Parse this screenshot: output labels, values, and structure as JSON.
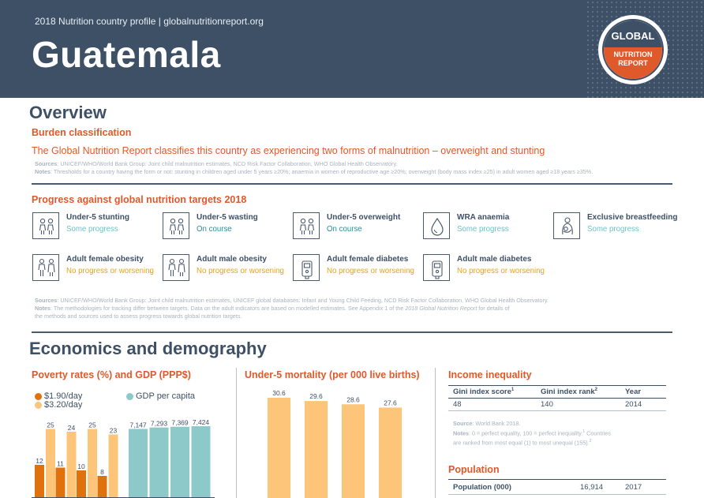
{
  "header": {
    "subtitle": "2018 Nutrition country profile  |  globalnutritionreport.org",
    "country": "Guatemala",
    "logo": {
      "line1": "GLOBAL",
      "line2": "NUTRITION",
      "line3": "REPORT"
    }
  },
  "overview": {
    "title": "Overview",
    "burden_heading": "Burden classification",
    "burden_text": "The Global Nutrition Report classifies this country as experiencing two forms of malnutrition – overweight and stunting",
    "sources_label": "Sources",
    "sources_text": ": UNICEF/WHO/World Bank Group: Joint child malnutrition estimates, NCD Risk Factor Collaboration, WHO Global Health Observatory.",
    "notes_label": "Notes",
    "notes_text": ": Thresholds for a country having the form or not: stunting in children aged under 5 years ≥20%; anaemia in women of reproductive age ≥20%; overweight (body mass index ≥25) in adult women aged ≥18 years ≥35%."
  },
  "progress": {
    "heading": "Progress against global nutrition targets 2018",
    "colors": {
      "some": "#6fc3c4",
      "on_course": "#2a8f98",
      "no_progress": "#e8a317"
    },
    "targets": [
      {
        "name": "Under-5 stunting",
        "status": "Some progress",
        "icon": "children-icon",
        "tone": "some"
      },
      {
        "name": "Under-5 wasting",
        "status": "On course",
        "icon": "children-icon",
        "tone": "on_course"
      },
      {
        "name": "Under-5 overweight",
        "status": "On course",
        "icon": "children-icon",
        "tone": "on_course"
      },
      {
        "name": "WRA anaemia",
        "status": "Some progress",
        "icon": "blood-drop-icon",
        "tone": "some"
      },
      {
        "name": "Exclusive breastfeeding",
        "status": "Some progress",
        "icon": "breastfeeding-icon",
        "tone": "some"
      },
      {
        "name": "Adult female obesity",
        "status": "No progress or worsening",
        "icon": "adults-icon",
        "tone": "no_progress"
      },
      {
        "name": "Adult male obesity",
        "status": "No progress or worsening",
        "icon": "adults-icon",
        "tone": "no_progress"
      },
      {
        "name": "Adult female diabetes",
        "status": "No progress or worsening",
        "icon": "glucose-meter-icon",
        "tone": "no_progress"
      },
      {
        "name": "Adult male diabetes",
        "status": "No progress or worsening",
        "icon": "glucose-meter-icon",
        "tone": "no_progress"
      }
    ],
    "sources_label": "Sources",
    "sources_text": ": UNICEF/WHO/World Bank Group: Joint child malnutrition estimates, UNICEF global databases: Infant and Young Child Feeding, NCD Risk Factor Collaboration, WHO Global Health Observatory.",
    "notes_label": "Notes",
    "notes_text": ": The methodologies for tracking differ between targets. Data on the adult indicators are based on modelled estimates. See Appendix 1 of the ",
    "notes_italic": "2018 Global Nutrition Report",
    "notes_text2": " for details of",
    "notes_line3": "the methods and sources used to assess progress towards global nutrition targets."
  },
  "economics": {
    "title": "Economics and demography",
    "poverty_heading": "Poverty rates (%) and GDP (PPP$)",
    "mortality_heading": "Under-5 mortality (per 000 live births)",
    "income_heading": "Income inequality",
    "income_table": {
      "headers": [
        "Gini index score",
        "Gini index rank",
        "Year"
      ],
      "sup1": "1",
      "sup2": "2",
      "row": [
        "48",
        "140",
        "2014"
      ]
    },
    "income_source_label": "Source",
    "income_source_text": ": World Bank 2018.",
    "income_notes_label": "Notes",
    "income_notes_text": ": 0 = perfect equality, 100 = perfect inequality.",
    "income_notes_sup1": "1",
    "income_notes_text2": " Countries",
    "income_notes_line2": "are ranked from most equal (1) to most unequal (155).",
    "income_notes_sup2": "2",
    "population_heading": "Population",
    "population_row": {
      "label": "Population (000)",
      "value": "16,914",
      "year": "2017"
    }
  },
  "chart_data": [
    {
      "type": "bar",
      "legend": [
        "$1.90/day",
        "$3.20/day"
      ],
      "colors": {
        "$1.90/day": "#e0720e",
        "$3.20/day": "#fdc57a"
      },
      "series": [
        {
          "name": "$1.90/day",
          "values": [
            12,
            11,
            10,
            8
          ],
          "labels": [
            "12",
            "11",
            "10",
            "8"
          ]
        },
        {
          "name": "$3.20/day",
          "values": [
            25,
            24,
            25,
            23
          ],
          "labels": [
            "25",
            "24",
            "25",
            "23"
          ]
        }
      ],
      "ylim": [
        0,
        28
      ]
    },
    {
      "type": "bar",
      "legend": [
        "GDP per capita"
      ],
      "colors": {
        "GDP per capita": "#8ec9c9"
      },
      "series": [
        {
          "name": "GDP per capita",
          "values": [
            7147,
            7293,
            7369,
            7424
          ],
          "labels": [
            "7,147",
            "7,293",
            "7,369",
            "7,424"
          ]
        }
      ],
      "ylim": [
        0,
        8000
      ]
    },
    {
      "type": "bar",
      "colors": {
        "bar": "#fdc57a"
      },
      "series": [
        {
          "values": [
            30.6,
            29.6,
            28.6,
            27.6
          ],
          "labels": [
            "30.6",
            "29.6",
            "28.6",
            "27.6"
          ]
        }
      ],
      "ylim": [
        0,
        33
      ]
    }
  ]
}
